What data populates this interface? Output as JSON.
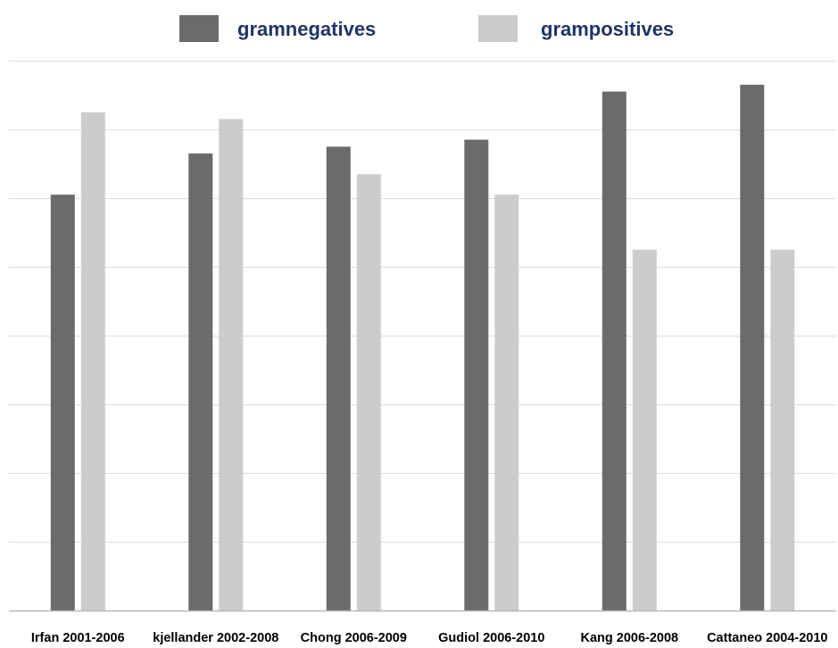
{
  "chart_data": {
    "type": "bar",
    "categories": [
      "Irfan 2001-2006",
      "kjellander 2002-2008",
      "Chong 2006-2009",
      "Gudiol 2006-2010",
      "Kang 2006-2008",
      "Cattaneo 2004-2010"
    ],
    "series": [
      {
        "name": "gramnegatives",
        "color": "#6b6b6b",
        "values": [
          60.5,
          66.5,
          67.5,
          68.5,
          75.5,
          76.5
        ]
      },
      {
        "name": "grampositives",
        "color": "#cccccc",
        "values": [
          72.5,
          71.5,
          63.5,
          60.5,
          52.5,
          52.5
        ]
      }
    ],
    "ylim": [
      0,
      80
    ],
    "y_gridlines": [
      10,
      20,
      30,
      40,
      50,
      60,
      70
    ],
    "grid": true,
    "legend": "top-center",
    "legend_text_color": "#1f3564",
    "grid_color": "#dddddd",
    "axis_color": "#b8b8b8"
  }
}
